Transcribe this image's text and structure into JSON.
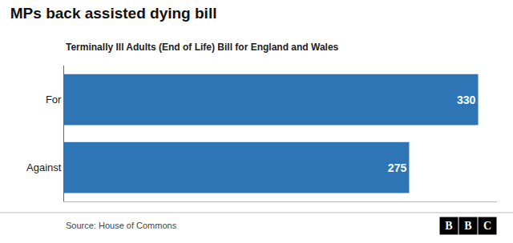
{
  "chart_data": {
    "type": "bar",
    "orientation": "horizontal",
    "title": "MPs back assisted dying bill",
    "subtitle": "Terminally Ill Adults (End of Life) Bill for England and Wales",
    "annotations": [
      "Source: House of Commons",
      "BBC"
    ],
    "categories": [
      "For",
      "Against"
    ],
    "values": [
      330,
      275
    ],
    "color": "#2e75b6",
    "xlim": [
      0,
      345
    ],
    "data_labels": true,
    "tick_labels": "y",
    "grid": false
  }
}
